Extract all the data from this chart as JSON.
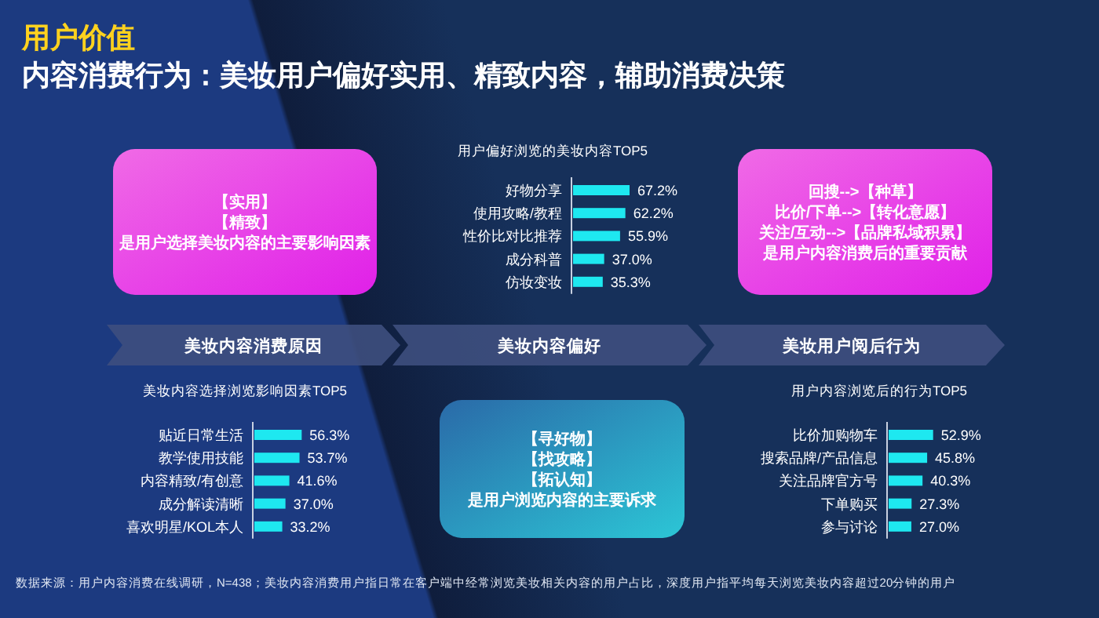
{
  "chart_data": [
    {
      "type": "other",
      "title": "用户价值",
      "subtitle": "内容消费行为：美妆用户偏好实用、精致内容，辅助消费决策",
      "annotations": [
        "【实用】",
        "【精致】",
        "是用户选择美妆内容的主要影响因素",
        "回搜-->【种草】",
        "比价/下单-->【转化意愿】",
        "关注/互动-->【品牌私域积累】",
        "是用户内容消费后的重要贡献",
        "美妆内容消费原因",
        "美妆内容偏好",
        "美妆用户阅后行为",
        "【寻好物】",
        "【找攻略】",
        "【拓认知】",
        "是用户浏览内容的主要诉求",
        "数据来源：用户内容消费在线调研，N=438；美妆内容消费用户指日常在客户端中经常浏览美妆相关内容的用户占比，深度用户指平均每天浏览美妆内容超过20分钟的用户"
      ]
    },
    {
      "type": "bar",
      "orientation": "horizontal",
      "title": "用户偏好浏览的美妆内容TOP5",
      "categories": [
        "好物分享",
        "使用攻略/教程",
        "性价比对比推荐",
        "成分科普",
        "仿妆变妆"
      ],
      "values": [
        67.2,
        62.2,
        55.9,
        37.0,
        35.3
      ],
      "value_labels": [
        "67.2%",
        "62.2%",
        "55.9%",
        "37.0%",
        "35.3%"
      ],
      "color": "#1ee8f0"
    },
    {
      "type": "bar",
      "orientation": "horizontal",
      "title": "美妆内容选择浏览影响因素TOP5",
      "categories": [
        "贴近日常生活",
        "教学使用技能",
        "内容精致/有创意",
        "成分解读清晰",
        "喜欢明星/KOL本人"
      ],
      "values": [
        56.3,
        53.7,
        41.6,
        37.0,
        33.2
      ],
      "value_labels": [
        "56.3%",
        "53.7%",
        "41.6%",
        "37.0%",
        "33.2%"
      ],
      "color": "#1ee8f0"
    },
    {
      "type": "bar",
      "orientation": "horizontal",
      "title": "用户内容浏览后的行为TOP5",
      "categories": [
        "比价加购物车",
        "搜索品牌/产品信息",
        "关注品牌官方号",
        "下单购买",
        "参与讨论"
      ],
      "values": [
        52.9,
        45.8,
        40.3,
        27.3,
        27.0
      ],
      "value_labels": [
        "52.9%",
        "45.8%",
        "40.3%",
        "27.3%",
        "27.0%"
      ],
      "color": "#1ee8f0"
    }
  ]
}
